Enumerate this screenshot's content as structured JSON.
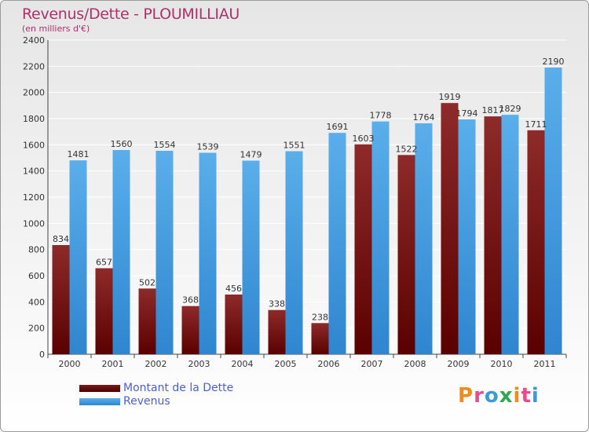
{
  "header": {
    "title": "Revenus/Dette - PLOUMILLIAU",
    "subtitle": "(en milliers d'€)"
  },
  "chart_data": {
    "type": "bar",
    "title": "Revenus/Dette - PLOUMILLIAU",
    "ylabel": "(en milliers d'€)",
    "xlabel": "",
    "categories": [
      "2000",
      "2001",
      "2002",
      "2003",
      "2004",
      "2005",
      "2006",
      "2007",
      "2008",
      "2009",
      "2010",
      "2011"
    ],
    "series": [
      {
        "name": "Montant de la Dette",
        "color": "#8b1a1a",
        "values": [
          834,
          657,
          502,
          368,
          456,
          338,
          238,
          1603,
          1522,
          1919,
          1817,
          1711
        ]
      },
      {
        "name": "Revenus",
        "color": "#3d9be0",
        "values": [
          1481,
          1560,
          1554,
          1539,
          1479,
          1551,
          1691,
          1778,
          1764,
          1794,
          1829,
          2190
        ]
      }
    ],
    "yticks": [
      0,
      200,
      400,
      600,
      800,
      1000,
      1200,
      1400,
      1600,
      1800,
      2000,
      2200,
      2400
    ],
    "ylim": [
      0,
      2400
    ],
    "grid": true,
    "legend": "bottom-left"
  },
  "legend": {
    "items": [
      {
        "label": "Montant de la Dette",
        "color": "#5a0000"
      },
      {
        "label": "Revenus",
        "color": "#3d9be0"
      }
    ]
  },
  "logo": {
    "text": "Proxiti",
    "letters": [
      "P",
      "r",
      "o",
      "x",
      "i",
      "t",
      "i"
    ],
    "colors": [
      "#f08c1c",
      "#e84c8b",
      "#3b9ad9",
      "#2fa84f",
      "#f08c1c",
      "#e84c8b",
      "#3b9ad9"
    ]
  }
}
